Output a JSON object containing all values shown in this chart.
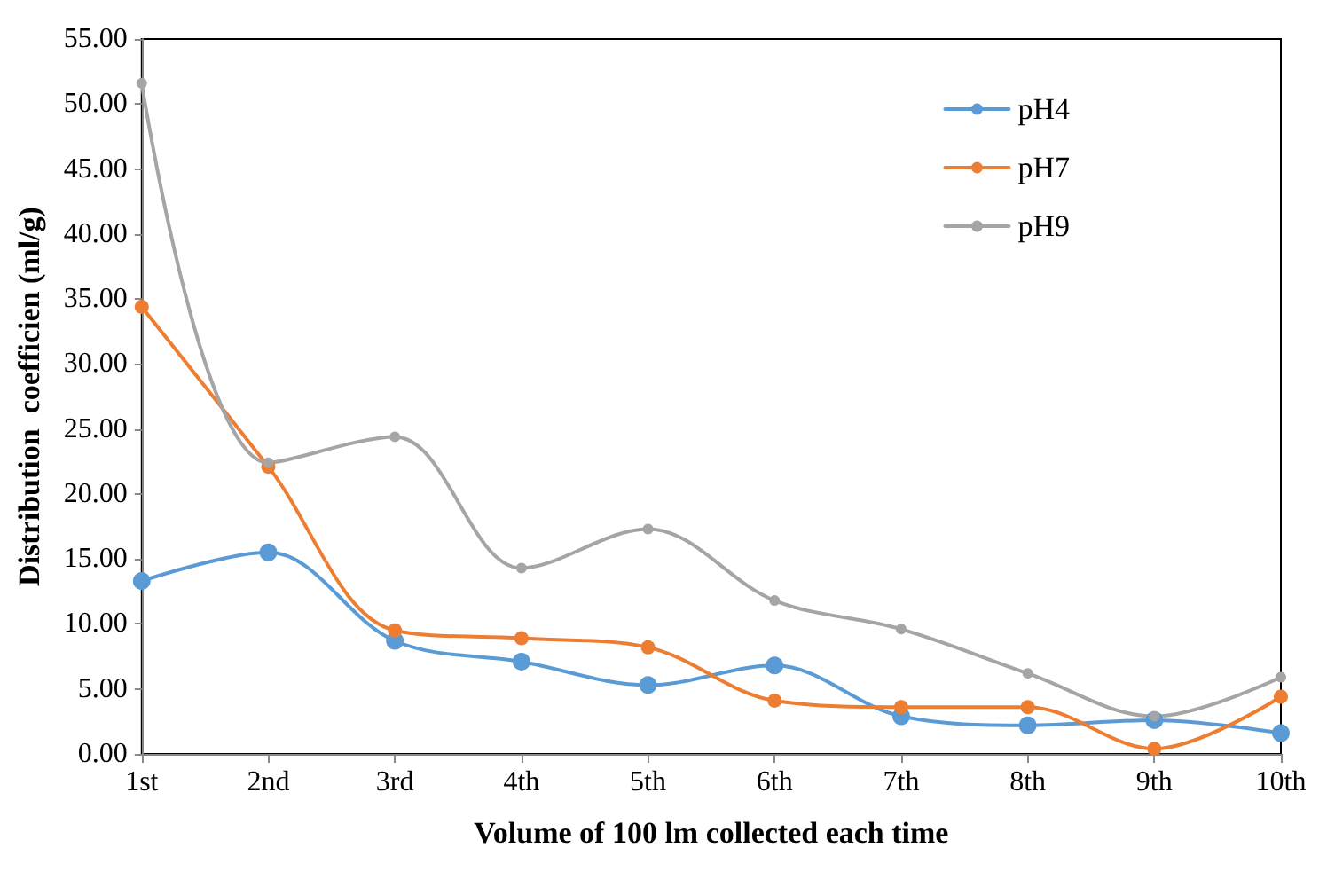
{
  "chart_data": {
    "type": "line",
    "xlabel": "Volume of 100 lm collected each time",
    "ylabel": "Distribution  coefficien (ml/g)",
    "categories": [
      "1st",
      "2nd",
      "3rd",
      "4th",
      "5th",
      "6th",
      "7th",
      "8th",
      "9th",
      "10th"
    ],
    "series": [
      {
        "name": "pH4",
        "color": "#5b9bd5",
        "values": [
          13.3,
          15.5,
          8.7,
          7.1,
          5.3,
          6.8,
          2.9,
          2.2,
          2.6,
          1.6
        ]
      },
      {
        "name": "pH7",
        "color": "#ed7d31",
        "values": [
          34.4,
          22.1,
          9.5,
          8.9,
          8.2,
          4.1,
          3.6,
          3.6,
          0.4,
          4.4
        ]
      },
      {
        "name": "pH9",
        "color": "#a5a5a5",
        "values": [
          51.6,
          22.4,
          24.4,
          14.3,
          17.3,
          11.8,
          9.6,
          6.2,
          2.9,
          5.9
        ]
      }
    ],
    "ylim": [
      0,
      55
    ],
    "yticks": [
      {
        "value": 0,
        "label": "0.00"
      },
      {
        "value": 5,
        "label": "5.00"
      },
      {
        "value": 10,
        "label": "10.00"
      },
      {
        "value": 15,
        "label": "15.00"
      },
      {
        "value": 20,
        "label": "20.00"
      },
      {
        "value": 25,
        "label": "25.00"
      },
      {
        "value": 30,
        "label": "30.00"
      },
      {
        "value": 35,
        "label": "35.00"
      },
      {
        "value": 40,
        "label": "40.00"
      },
      {
        "value": 45,
        "label": "45.00"
      },
      {
        "value": 50,
        "label": "50.00"
      },
      {
        "value": 55,
        "label": "55.00"
      }
    ],
    "grid": false,
    "legend": "top right",
    "marker": "circle",
    "line_style": "solid"
  }
}
